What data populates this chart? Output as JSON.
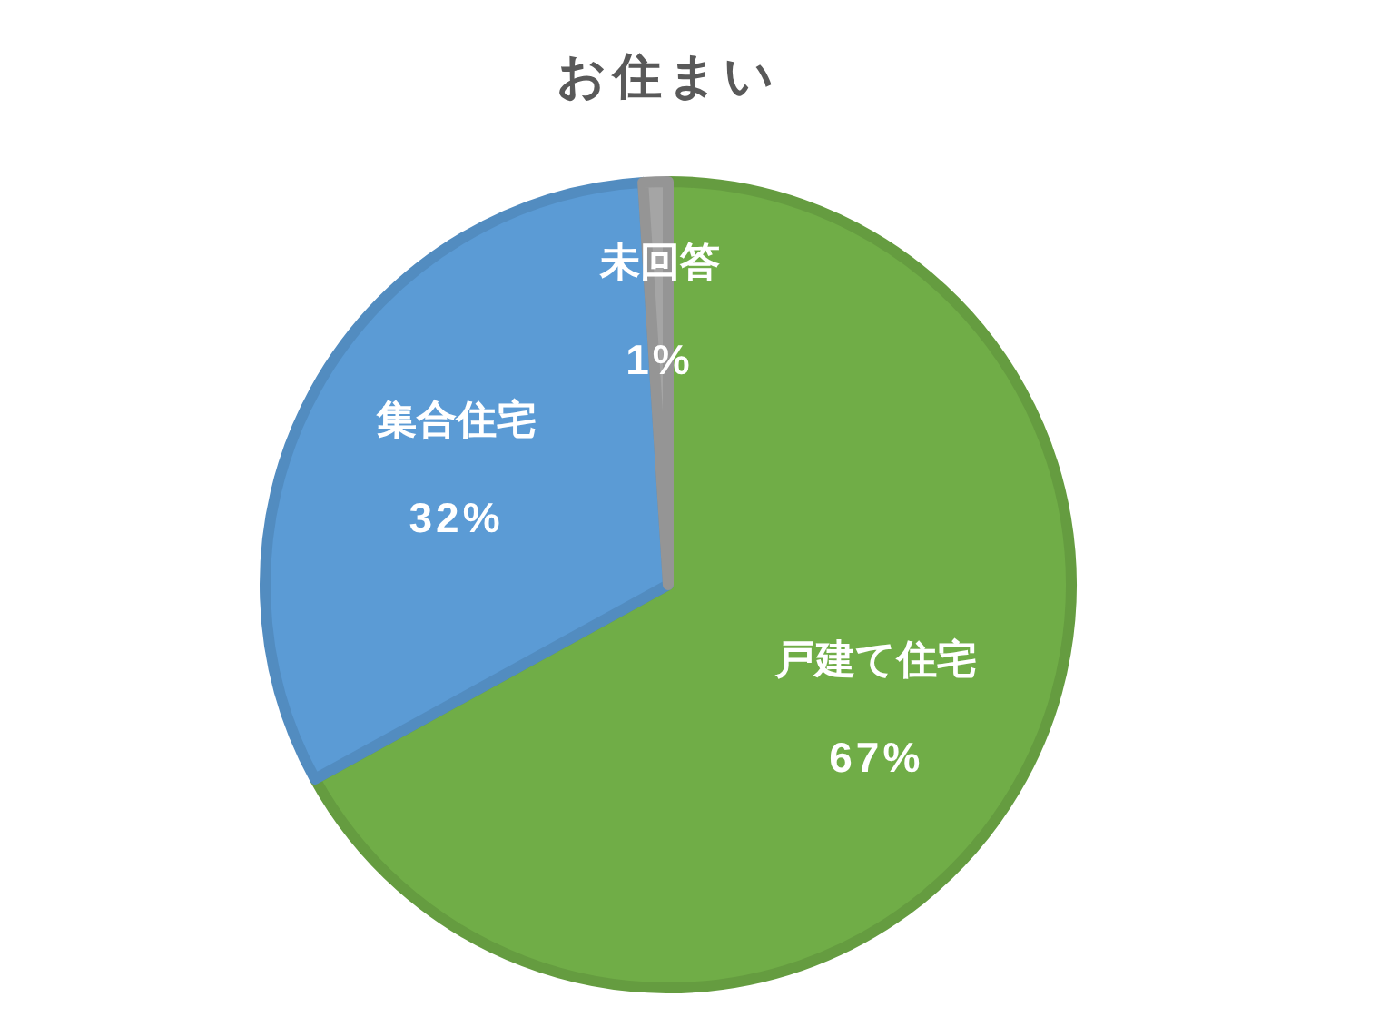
{
  "chart_data": {
    "type": "pie",
    "title": "お住まい",
    "categories": [
      "戸建て住宅",
      "集合住宅",
      "未回答"
    ],
    "values": [
      67,
      32,
      1
    ],
    "colors": [
      "#70ad47",
      "#5b9bd5",
      "#a5a5a5"
    ],
    "value_labels": [
      "67%",
      "32%",
      "1%"
    ]
  }
}
